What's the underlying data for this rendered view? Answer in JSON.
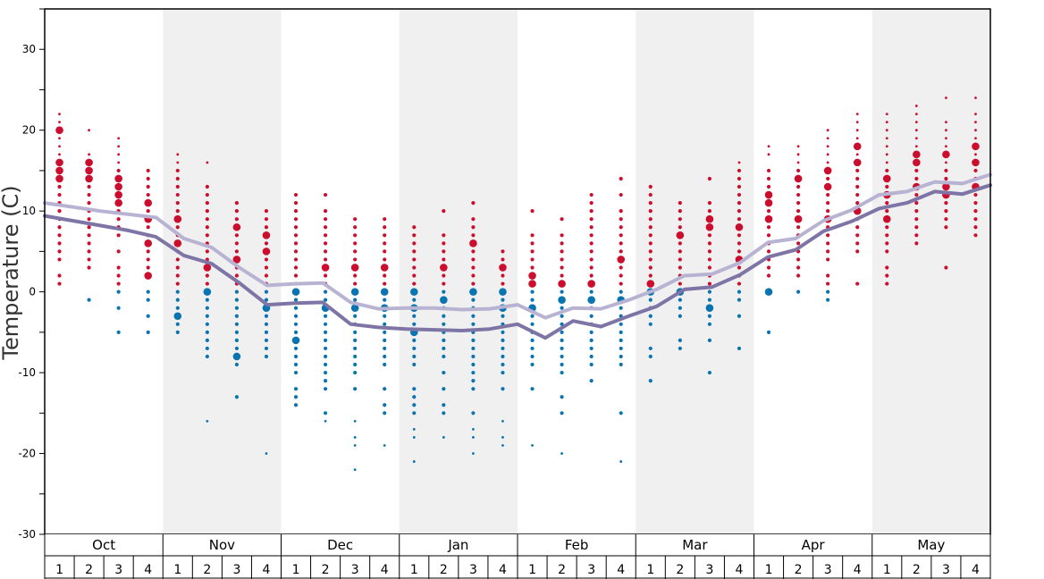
{
  "chart_data": {
    "type": "scatter",
    "title": "",
    "xlabel": "",
    "ylabel": "Temperature (C)",
    "ylim": [
      -30,
      35
    ],
    "yticks": [
      -30,
      -20,
      -10,
      0,
      10,
      20,
      30
    ],
    "months": [
      "Oct",
      "Nov",
      "Dec",
      "Jan",
      "Feb",
      "Mar",
      "Apr",
      "May"
    ],
    "weeks_per_month": [
      1,
      2,
      3,
      4
    ],
    "grid": "alternating month bands",
    "colors": {
      "above_zero": "#cc0e2e",
      "below_zero": "#0a74b0",
      "line_high": "#b8b3d2",
      "line_low": "#7e74a6",
      "band": "#f0f0f0"
    },
    "series": [
      {
        "type": "line",
        "color": "#b8b3d2",
        "values": [
          11,
          10.5,
          10,
          9.6,
          9.2,
          6.6,
          5.5,
          3,
          0.8,
          1,
          1.1,
          -1.3,
          -2.1,
          -2.0,
          -2.0,
          -2.2,
          -2.1,
          -1.6,
          -3.2,
          -2,
          -2.1,
          -1,
          0.3,
          2,
          2.2,
          3.6,
          6.1,
          6.6,
          8.8,
          10.1,
          12,
          12.4,
          13.6,
          13.4,
          14.5
        ]
      },
      {
        "type": "line",
        "color": "#7e74a6",
        "values": [
          9.4,
          8.8,
          8.2,
          7.6,
          6.8,
          4.5,
          3.5,
          1.1,
          -1.6,
          -1.4,
          -1.3,
          -4,
          -4.4,
          -4.6,
          -4.7,
          -4.8,
          -4.6,
          -4,
          -5.7,
          -3.6,
          -4.3,
          -3,
          -1.8,
          0.3,
          0.6,
          2.1,
          4.3,
          5.2,
          7.5,
          8.7,
          10.3,
          11,
          12.4,
          12.1,
          13.2
        ]
      }
    ],
    "observations": [
      {
        "week": 0,
        "temps": [
          22,
          21,
          20,
          19,
          18,
          17,
          16,
          15,
          14,
          13,
          12,
          11,
          10,
          9,
          8,
          7,
          6,
          5,
          4,
          2,
          1
        ],
        "big": [
          20,
          16,
          15,
          14
        ]
      },
      {
        "week": 1,
        "temps": [
          20,
          17,
          16,
          15,
          14,
          13,
          12,
          11,
          10,
          9,
          8,
          7,
          6,
          5,
          4,
          3,
          -1
        ],
        "big": [
          16,
          15,
          14
        ]
      },
      {
        "week": 2,
        "temps": [
          19,
          18,
          17,
          16,
          15,
          14,
          13,
          12,
          11,
          10,
          9,
          8,
          7,
          5,
          3,
          2,
          1,
          0,
          -2,
          -5
        ],
        "big": [
          14,
          13,
          12,
          11
        ]
      },
      {
        "week": 3,
        "temps": [
          15,
          14,
          13,
          12,
          11,
          10,
          9,
          8,
          7,
          6,
          5,
          4,
          3,
          2,
          0,
          -1,
          -3,
          -5
        ],
        "big": [
          11,
          9,
          6,
          2
        ]
      },
      {
        "week": 4,
        "temps": [
          17,
          16,
          15,
          14,
          13,
          12,
          11,
          10,
          9,
          8,
          7,
          6,
          5,
          4,
          3,
          2,
          1,
          0,
          -1,
          -2,
          -3,
          -4,
          -5
        ],
        "big": [
          9,
          6,
          -3
        ]
      },
      {
        "week": 5,
        "temps": [
          16,
          13,
          12,
          11,
          10,
          9,
          8,
          7,
          6,
          5,
          4,
          3,
          2,
          1,
          0,
          -1,
          -2,
          -3,
          -4,
          -5,
          -6,
          -7,
          -8,
          -16
        ],
        "big": [
          3,
          0
        ]
      },
      {
        "week": 6,
        "temps": [
          11,
          10,
          9,
          8,
          7,
          6,
          5,
          4,
          3,
          2,
          1,
          0,
          -1,
          -2,
          -3,
          -4,
          -5,
          -6,
          -7,
          -8,
          -9,
          -13
        ],
        "big": [
          8,
          4,
          -8
        ]
      },
      {
        "week": 7,
        "temps": [
          10,
          9,
          8,
          7,
          6,
          5,
          4,
          3,
          2,
          1,
          0,
          -1,
          -2,
          -3,
          -4,
          -5,
          -6,
          -7,
          -8,
          -20
        ],
        "big": [
          7,
          5,
          -2
        ]
      },
      {
        "week": 8,
        "temps": [
          12,
          11,
          10,
          9,
          8,
          7,
          6,
          5,
          4,
          3,
          2,
          1,
          0,
          -1,
          -2,
          -3,
          -4,
          -5,
          -6,
          -7,
          -8,
          -9,
          -10,
          -12,
          -13,
          -14
        ],
        "big": [
          0,
          -6
        ]
      },
      {
        "week": 9,
        "temps": [
          12,
          10,
          9,
          8,
          7,
          6,
          5,
          4,
          3,
          2,
          1,
          0,
          -1,
          -2,
          -3,
          -4,
          -5,
          -6,
          -7,
          -8,
          -9,
          -10,
          -11,
          -12,
          -15,
          -16
        ],
        "big": [
          3,
          -2
        ]
      },
      {
        "week": 10,
        "temps": [
          9,
          8,
          7,
          6,
          5,
          4,
          3,
          2,
          1,
          0,
          -1,
          -2,
          -3,
          -4,
          -5,
          -6,
          -7,
          -8,
          -9,
          -10,
          -12,
          -16,
          -18,
          -19,
          -22
        ],
        "big": [
          3,
          0,
          -2
        ]
      },
      {
        "week": 11,
        "temps": [
          9,
          8,
          7,
          6,
          5,
          4,
          3,
          2,
          1,
          0,
          -1,
          -2,
          -3,
          -4,
          -5,
          -6,
          -7,
          -8,
          -9,
          -12,
          -14,
          -15,
          -19
        ],
        "big": [
          3,
          0,
          -2
        ]
      },
      {
        "week": 12,
        "temps": [
          8,
          7,
          6,
          5,
          4,
          3,
          2,
          1,
          0,
          -1,
          -2,
          -3,
          -4,
          -5,
          -6,
          -7,
          -8,
          -9,
          -12,
          -13,
          -14,
          -15,
          -17,
          -18,
          -21
        ],
        "big": [
          0,
          -2,
          -5
        ]
      },
      {
        "week": 13,
        "temps": [
          10,
          7,
          6,
          5,
          4,
          3,
          2,
          1,
          0,
          -1,
          -2,
          -3,
          -4,
          -5,
          -6,
          -7,
          -8,
          -10,
          -12,
          -14,
          -15,
          -18
        ],
        "big": [
          3,
          -1
        ]
      },
      {
        "week": 14,
        "temps": [
          11,
          9,
          8,
          7,
          6,
          5,
          4,
          3,
          2,
          1,
          0,
          -1,
          -2,
          -3,
          -4,
          -5,
          -6,
          -7,
          -8,
          -9,
          -10,
          -11,
          -12,
          -15,
          -17,
          -18,
          -20
        ],
        "big": [
          6,
          0
        ]
      },
      {
        "week": 15,
        "temps": [
          5,
          4,
          3,
          2,
          1,
          0,
          -1,
          -2,
          -3,
          -4,
          -5,
          -6,
          -7,
          -8,
          -9,
          -10,
          -12,
          -16,
          -18,
          -19
        ],
        "big": [
          3,
          0,
          -2
        ]
      },
      {
        "week": 16,
        "temps": [
          10,
          7,
          6,
          5,
          4,
          3,
          2,
          1,
          0,
          -1,
          -2,
          -3,
          -4,
          -5,
          -6,
          -7,
          -8,
          -9,
          -12,
          -19
        ],
        "big": [
          2,
          1,
          -2
        ]
      },
      {
        "week": 17,
        "temps": [
          9,
          7,
          6,
          5,
          4,
          3,
          2,
          1,
          0,
          -1,
          -2,
          -3,
          -4,
          -5,
          -6,
          -7,
          -8,
          -9,
          -10,
          -13,
          -15,
          -20
        ],
        "big": [
          1,
          -1
        ]
      },
      {
        "week": 18,
        "temps": [
          12,
          11,
          10,
          9,
          8,
          7,
          6,
          5,
          4,
          3,
          2,
          1,
          0,
          -1,
          -2,
          -3,
          -4,
          -5,
          -6,
          -7,
          -8,
          -9,
          -11
        ],
        "big": [
          1,
          -1
        ]
      },
      {
        "week": 19,
        "temps": [
          14,
          12,
          10,
          9,
          8,
          7,
          6,
          5,
          4,
          3,
          2,
          1,
          0,
          -1,
          -2,
          -3,
          -4,
          -5,
          -6,
          -7,
          -8,
          -9,
          -15,
          -21
        ],
        "big": [
          4,
          -1
        ]
      },
      {
        "week": 20,
        "temps": [
          13,
          12,
          11,
          10,
          9,
          8,
          7,
          6,
          5,
          4,
          3,
          2,
          1,
          0,
          -1,
          -2,
          -3,
          -4,
          -7,
          -8,
          -11
        ],
        "big": [
          1,
          0
        ]
      },
      {
        "week": 21,
        "temps": [
          11,
          10,
          9,
          8,
          7,
          6,
          5,
          4,
          3,
          2,
          1,
          0,
          -1,
          -2,
          -3,
          -6,
          -7
        ],
        "big": [
          7,
          0
        ]
      },
      {
        "week": 22,
        "temps": [
          14,
          11,
          10,
          9,
          8,
          7,
          6,
          5,
          4,
          3,
          2,
          1,
          0,
          -1,
          -2,
          -3,
          -4,
          -6,
          -10
        ],
        "big": [
          9,
          8,
          -2
        ]
      },
      {
        "week": 23,
        "temps": [
          16,
          15,
          14,
          13,
          12,
          11,
          10,
          9,
          8,
          7,
          6,
          5,
          4,
          3,
          2,
          1,
          0,
          -1,
          -3,
          -7
        ],
        "big": [
          8,
          4
        ]
      },
      {
        "week": 24,
        "temps": [
          18,
          17,
          15,
          14,
          13,
          12,
          11,
          10,
          9,
          8,
          7,
          6,
          5,
          4,
          3,
          2,
          0,
          -5
        ],
        "big": [
          12,
          11,
          9,
          0
        ]
      },
      {
        "week": 25,
        "temps": [
          18,
          17,
          16,
          15,
          14,
          13,
          12,
          11,
          10,
          9,
          8,
          7,
          6,
          5,
          4,
          3,
          2,
          0
        ],
        "big": [
          14,
          9
        ]
      },
      {
        "week": 26,
        "temps": [
          20,
          19,
          18,
          17,
          16,
          15,
          14,
          13,
          12,
          11,
          10,
          9,
          8,
          7,
          6,
          5,
          4,
          2,
          1,
          0,
          -1
        ],
        "big": [
          15,
          13,
          9
        ]
      },
      {
        "week": 27,
        "temps": [
          22,
          21,
          20,
          19,
          18,
          17,
          16,
          15,
          14,
          13,
          12,
          11,
          10,
          9,
          8,
          7,
          6,
          5,
          1
        ],
        "big": [
          18,
          16,
          10
        ]
      },
      {
        "week": 28,
        "temps": [
          22,
          21,
          20,
          19,
          18,
          17,
          16,
          15,
          14,
          13,
          12,
          11,
          10,
          9,
          8,
          7,
          6,
          5,
          3,
          2,
          1
        ],
        "big": [
          14,
          12,
          9
        ]
      },
      {
        "week": 29,
        "temps": [
          23,
          22,
          21,
          20,
          19,
          18,
          17,
          16,
          15,
          14,
          13,
          12,
          11,
          10,
          9,
          8,
          7,
          6
        ],
        "big": [
          17,
          16,
          13
        ]
      },
      {
        "week": 30,
        "temps": [
          24,
          21,
          20,
          19,
          18,
          17,
          16,
          15,
          14,
          13,
          12,
          11,
          10,
          9,
          8,
          3
        ],
        "big": [
          17,
          13,
          12
        ]
      },
      {
        "week": 31,
        "temps": [
          24,
          22,
          21,
          20,
          19,
          18,
          17,
          16,
          15,
          14,
          13,
          12,
          11,
          10,
          9,
          8,
          7
        ],
        "big": [
          18,
          16,
          13
        ]
      }
    ]
  }
}
